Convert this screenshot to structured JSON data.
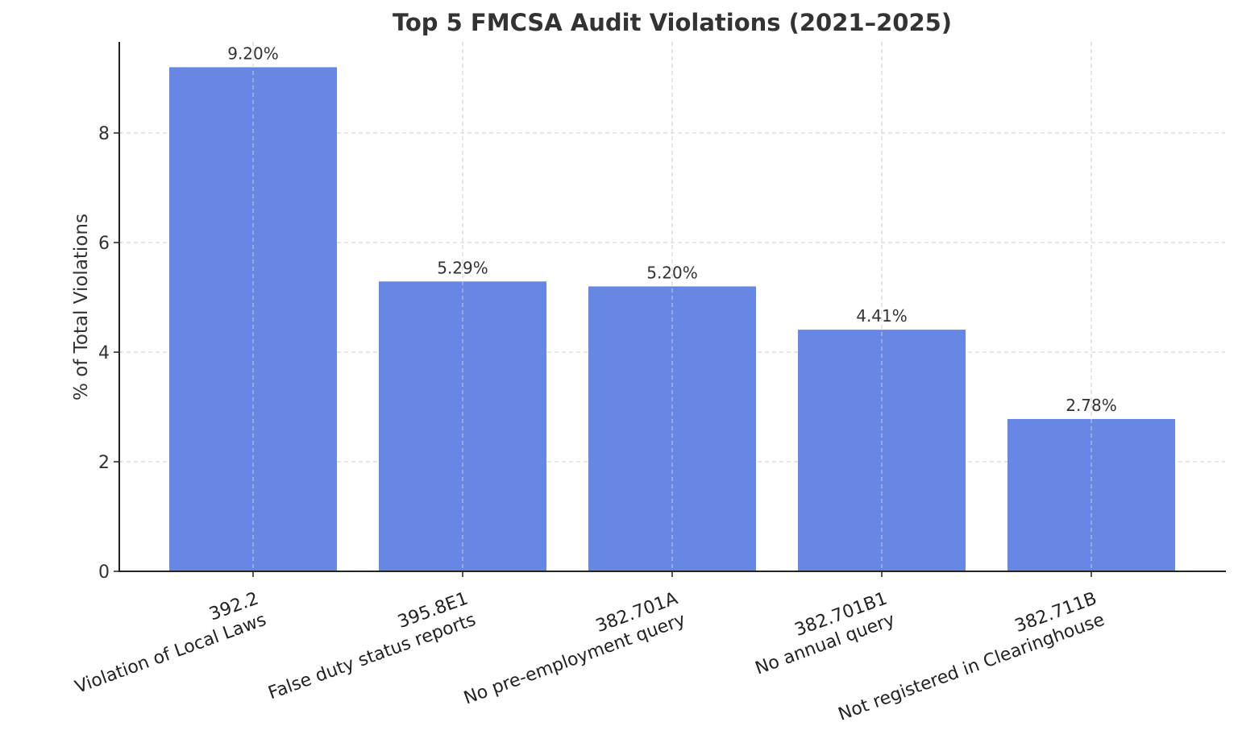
{
  "chart_data": {
    "type": "bar",
    "title": "Top 5 FMCSA Audit Violations (2021–2025)",
    "xlabel": "",
    "ylabel": "% of Total Violations",
    "categories": [
      {
        "code": "392.2",
        "description": "Violation of Local Laws"
      },
      {
        "code": "395.8E1",
        "description": "False duty status reports"
      },
      {
        "code": "382.701A",
        "description": "No pre-employment query"
      },
      {
        "code": "382.701B1",
        "description": "No annual query"
      },
      {
        "code": "382.711B",
        "description": "Not registered in Clearinghouse"
      }
    ],
    "values": [
      9.2,
      5.29,
      5.2,
      4.41,
      2.78
    ],
    "value_labels": [
      "9.20%",
      "5.29%",
      "5.20%",
      "4.41%",
      "2.78%"
    ],
    "ylim": [
      0,
      9.66
    ],
    "yticks": [
      0,
      2,
      4,
      6,
      8
    ],
    "ytick_labels": [
      "0",
      "2",
      "4",
      "6",
      "8"
    ],
    "grid": true,
    "bar_color": "#6787E5",
    "legend": null
  }
}
